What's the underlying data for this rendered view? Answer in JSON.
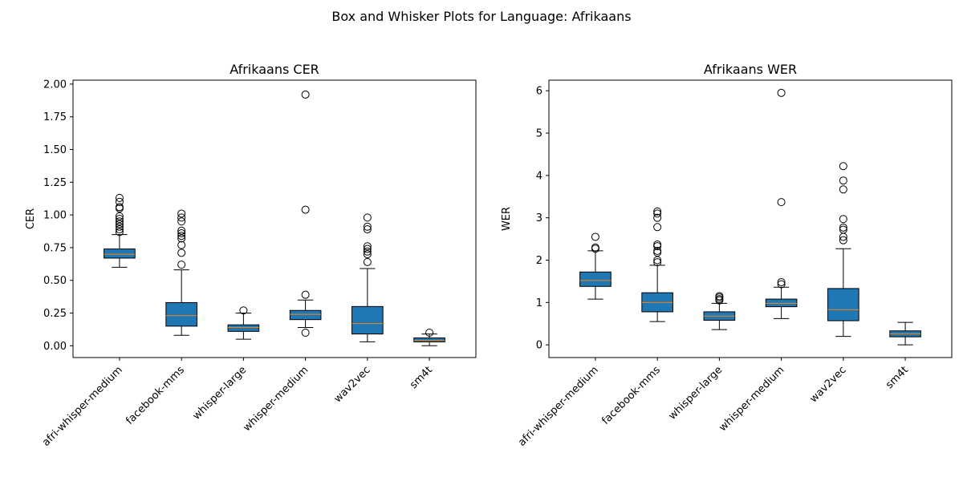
{
  "figure_title": "Box and Whisker Plots for Language: Afrikaans",
  "colors": {
    "box_fill": "#1f77b4",
    "median": "#ff7f0e",
    "edge": "#000000"
  },
  "chart_data": [
    {
      "type": "box",
      "title": "Afrikaans CER",
      "xlabel": "",
      "ylabel": "CER",
      "ylim": [
        -0.09,
        2.03
      ],
      "yticks": [
        0.0,
        0.25,
        0.5,
        0.75,
        1.0,
        1.25,
        1.5,
        1.75,
        2.0
      ],
      "ytick_labels": [
        "0.00",
        "0.25",
        "0.50",
        "0.75",
        "1.00",
        "1.25",
        "1.50",
        "1.75",
        "2.00"
      ],
      "categories": [
        "afri-whisper-medium",
        "facebook-mms",
        "whisper-large",
        "whisper-medium",
        "wav2vec",
        "sm4t"
      ],
      "boxes": [
        {
          "whisker_low": 0.6,
          "q1": 0.67,
          "median": 0.7,
          "q3": 0.74,
          "whisker_high": 0.85,
          "outliers": [
            0.87,
            0.89,
            0.91,
            0.93,
            0.95,
            0.97,
            0.99,
            1.05,
            1.06,
            1.1,
            1.13
          ]
        },
        {
          "whisker_low": 0.08,
          "q1": 0.15,
          "median": 0.23,
          "q3": 0.33,
          "whisker_high": 0.58,
          "outliers": [
            0.62,
            0.71,
            0.77,
            0.82,
            0.84,
            0.86,
            0.88,
            0.95,
            0.98,
            1.01
          ]
        },
        {
          "whisker_low": 0.05,
          "q1": 0.11,
          "median": 0.14,
          "q3": 0.16,
          "whisker_high": 0.25,
          "outliers": [
            0.27
          ]
        },
        {
          "whisker_low": 0.14,
          "q1": 0.2,
          "median": 0.24,
          "q3": 0.27,
          "whisker_high": 0.35,
          "outliers": [
            0.1,
            0.39,
            1.04,
            1.92
          ]
        },
        {
          "whisker_low": 0.03,
          "q1": 0.09,
          "median": 0.17,
          "q3": 0.3,
          "whisker_high": 0.59,
          "outliers": [
            0.64,
            0.7,
            0.72,
            0.74,
            0.76,
            0.89,
            0.91,
            0.98
          ]
        },
        {
          "whisker_low": 0.0,
          "q1": 0.03,
          "median": 0.04,
          "q3": 0.06,
          "whisker_high": 0.09,
          "outliers": [
            0.1
          ]
        }
      ]
    },
    {
      "type": "box",
      "title": "Afrikaans WER",
      "xlabel": "",
      "ylabel": "WER",
      "ylim": [
        -0.3,
        6.25
      ],
      "yticks": [
        0,
        1,
        2,
        3,
        4,
        5,
        6
      ],
      "ytick_labels": [
        "0",
        "1",
        "2",
        "3",
        "4",
        "5",
        "6"
      ],
      "categories": [
        "afri-whisper-medium",
        "facebook-mms",
        "whisper-large",
        "whisper-medium",
        "wav2vec",
        "sm4t"
      ],
      "boxes": [
        {
          "whisker_low": 1.08,
          "q1": 1.38,
          "median": 1.52,
          "q3": 1.72,
          "whisker_high": 2.22,
          "outliers": [
            2.27,
            2.3,
            2.55
          ]
        },
        {
          "whisker_low": 0.55,
          "q1": 0.78,
          "median": 1.0,
          "q3": 1.23,
          "whisker_high": 1.88,
          "outliers": [
            1.95,
            2.0,
            2.18,
            2.22,
            2.33,
            2.37,
            2.78,
            3.0,
            3.1,
            3.15
          ]
        },
        {
          "whisker_low": 0.36,
          "q1": 0.58,
          "median": 0.68,
          "q3": 0.78,
          "whisker_high": 0.98,
          "outliers": [
            1.05,
            1.08,
            1.12,
            1.15
          ]
        },
        {
          "whisker_low": 0.62,
          "q1": 0.9,
          "median": 0.98,
          "q3": 1.08,
          "whisker_high": 1.36,
          "outliers": [
            1.43,
            1.48,
            3.37,
            5.95
          ]
        },
        {
          "whisker_low": 0.2,
          "q1": 0.57,
          "median": 0.83,
          "q3": 1.33,
          "whisker_high": 2.27,
          "outliers": [
            2.47,
            2.55,
            2.72,
            2.77,
            2.97,
            3.67,
            3.88,
            4.22
          ]
        },
        {
          "whisker_low": 0.0,
          "q1": 0.19,
          "median": 0.26,
          "q3": 0.33,
          "whisker_high": 0.53,
          "outliers": []
        }
      ]
    }
  ]
}
